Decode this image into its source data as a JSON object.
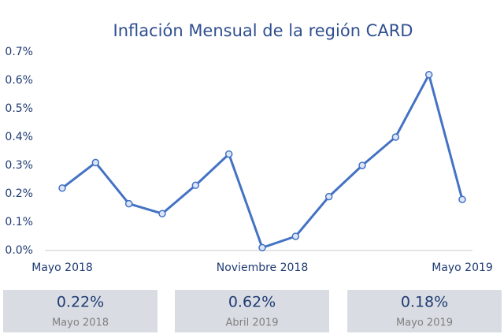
{
  "chart_data": {
    "type": "line",
    "title": "Inflación Mensual de la región CARD",
    "categories": [
      "Mayo 2018",
      null,
      null,
      null,
      null,
      null,
      "Noviembre 2018",
      null,
      null,
      null,
      null,
      null,
      "Mayo 2019"
    ],
    "series": [
      {
        "name": null,
        "color": "#4472c4",
        "values": [
          0.22,
          0.31,
          0.165,
          0.13,
          0.23,
          0.34,
          0.01,
          0.05,
          0.19,
          0.3,
          0.4,
          0.62,
          0.18
        ]
      }
    ],
    "ylim": [
      0,
      0.7
    ],
    "yticks": [
      {
        "value": 0,
        "label": "0.0%"
      },
      {
        "value": 0.1,
        "label": "0.1%"
      },
      {
        "value": 0.2,
        "label": "0.2%"
      },
      {
        "value": 0.3,
        "label": "0.3%"
      },
      {
        "value": 0.4,
        "label": "0.4%"
      },
      {
        "value": 0.5,
        "label": "0.5%"
      },
      {
        "value": 0.6,
        "label": "0.6%"
      },
      {
        "value": 0.7,
        "label": "0.7%"
      }
    ],
    "grid": false
  },
  "cards": [
    {
      "value": "0.22%",
      "label": "Mayo 2018"
    },
    {
      "value": "0.62%",
      "label": "Abril 2019"
    },
    {
      "value": "0.18%",
      "label": "Mayo 2019"
    }
  ]
}
